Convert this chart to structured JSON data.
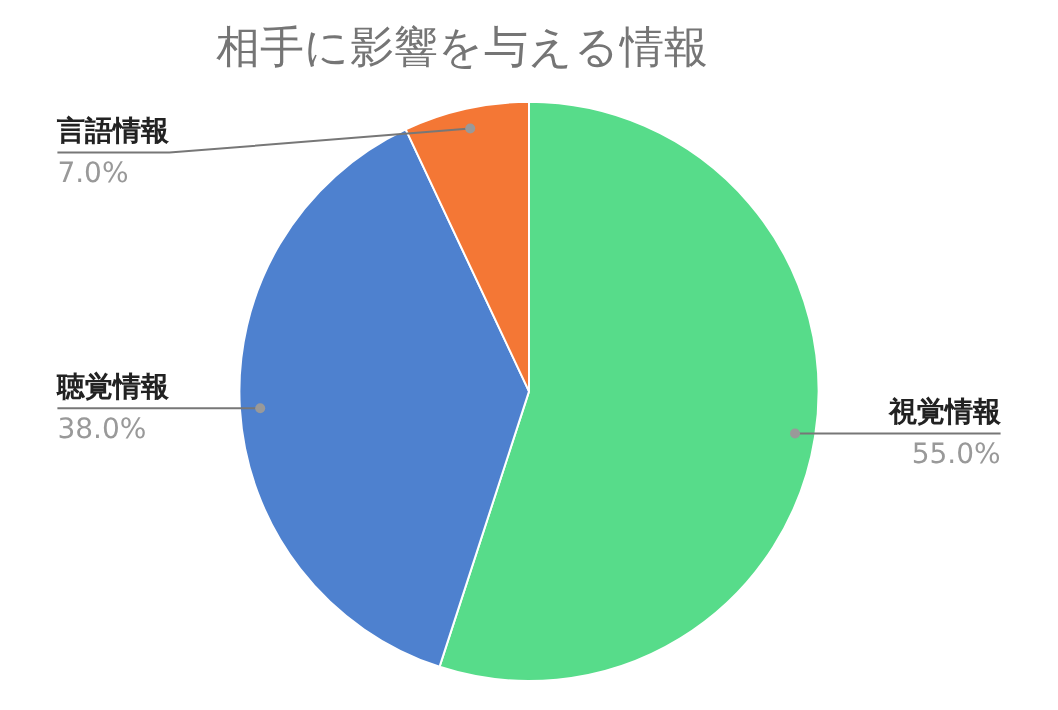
{
  "chart_data": {
    "type": "pie",
    "title": "相手に影響を与える情報",
    "categories": [
      "視覚情報",
      "聴覚情報",
      "言語情報"
    ],
    "values": [
      55,
      38,
      7
    ],
    "colors": [
      "#57dc8a",
      "#4e81cf",
      "#f47735"
    ],
    "value_labels": [
      "55.0%",
      "38.0%",
      "7.0%"
    ]
  }
}
